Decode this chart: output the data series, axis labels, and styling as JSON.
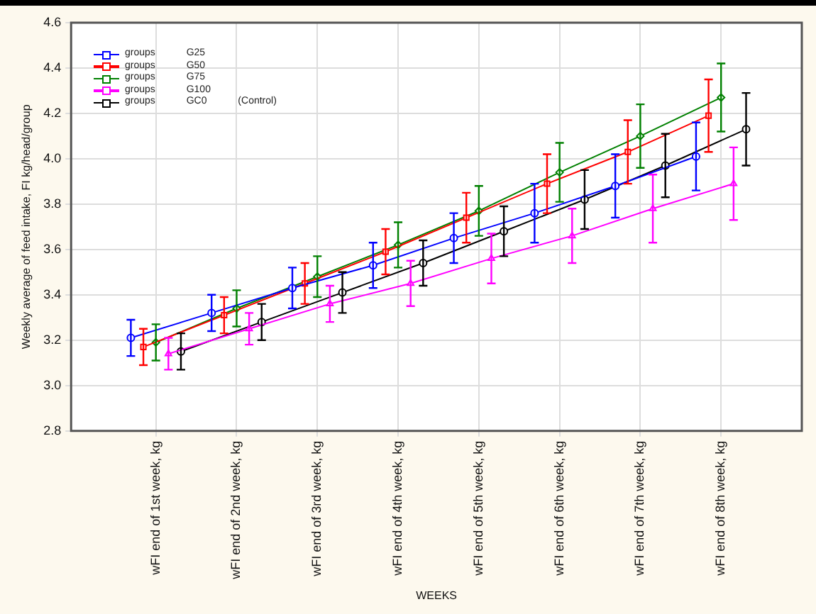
{
  "chart_data": {
    "type": "line",
    "xlabel": "WEEKS",
    "ylabel": "Weekly average of feed intake, FI kg/head/group",
    "categories": [
      "wFI end of 1st week, kg",
      "wFI end of 2nd week, kg",
      "wFI end of 3rd week, kg",
      "wFI end of 4th week, kg",
      "wFI end of 5th week, kg",
      "wFI end of 6th week, kg",
      "wFI end of 7th week, kg",
      "wFI end of 8th week, kg"
    ],
    "series": [
      {
        "name": "groups G25",
        "color": "#0000ff",
        "marker": "circle",
        "values": [
          3.21,
          3.32,
          3.43,
          3.53,
          3.65,
          3.76,
          3.88,
          4.01
        ],
        "errors": [
          0.08,
          0.08,
          0.09,
          0.1,
          0.11,
          0.13,
          0.14,
          0.15
        ]
      },
      {
        "name": "groups G50",
        "color": "#ff0000",
        "marker": "square",
        "values": [
          3.17,
          3.31,
          3.45,
          3.59,
          3.74,
          3.89,
          4.03,
          4.19
        ],
        "errors": [
          0.08,
          0.08,
          0.09,
          0.1,
          0.11,
          0.13,
          0.14,
          0.16
        ]
      },
      {
        "name": "groups G75",
        "color": "#008000",
        "marker": "diamond",
        "values": [
          3.19,
          3.34,
          3.48,
          3.62,
          3.77,
          3.94,
          4.1,
          4.27
        ],
        "errors": [
          0.08,
          0.08,
          0.09,
          0.1,
          0.11,
          0.13,
          0.14,
          0.15
        ]
      },
      {
        "name": "groups G100",
        "color": "#ff00ff",
        "marker": "triangle",
        "values": [
          3.14,
          3.25,
          3.36,
          3.45,
          3.56,
          3.66,
          3.78,
          3.89
        ],
        "errors": [
          0.07,
          0.07,
          0.08,
          0.1,
          0.11,
          0.12,
          0.15,
          0.16
        ]
      },
      {
        "name": "groups GC0 (Control)",
        "color": "#000000",
        "marker": "circle",
        "values": [
          3.15,
          3.28,
          3.41,
          3.54,
          3.68,
          3.82,
          3.97,
          4.13
        ],
        "errors": [
          0.08,
          0.08,
          0.09,
          0.1,
          0.11,
          0.13,
          0.14,
          0.16
        ]
      }
    ],
    "ylim": [
      2.8,
      4.6
    ],
    "yticks": [
      2.8,
      {
        "value": 3,
        "label": "3.0"
      },
      3.2,
      3.4,
      3.6,
      3.8,
      {
        "value": 4,
        "label": "4.0"
      },
      4.2,
      4.4,
      4.6
    ],
    "grid": true,
    "legend": "top left",
    "line_style": "solid"
  }
}
